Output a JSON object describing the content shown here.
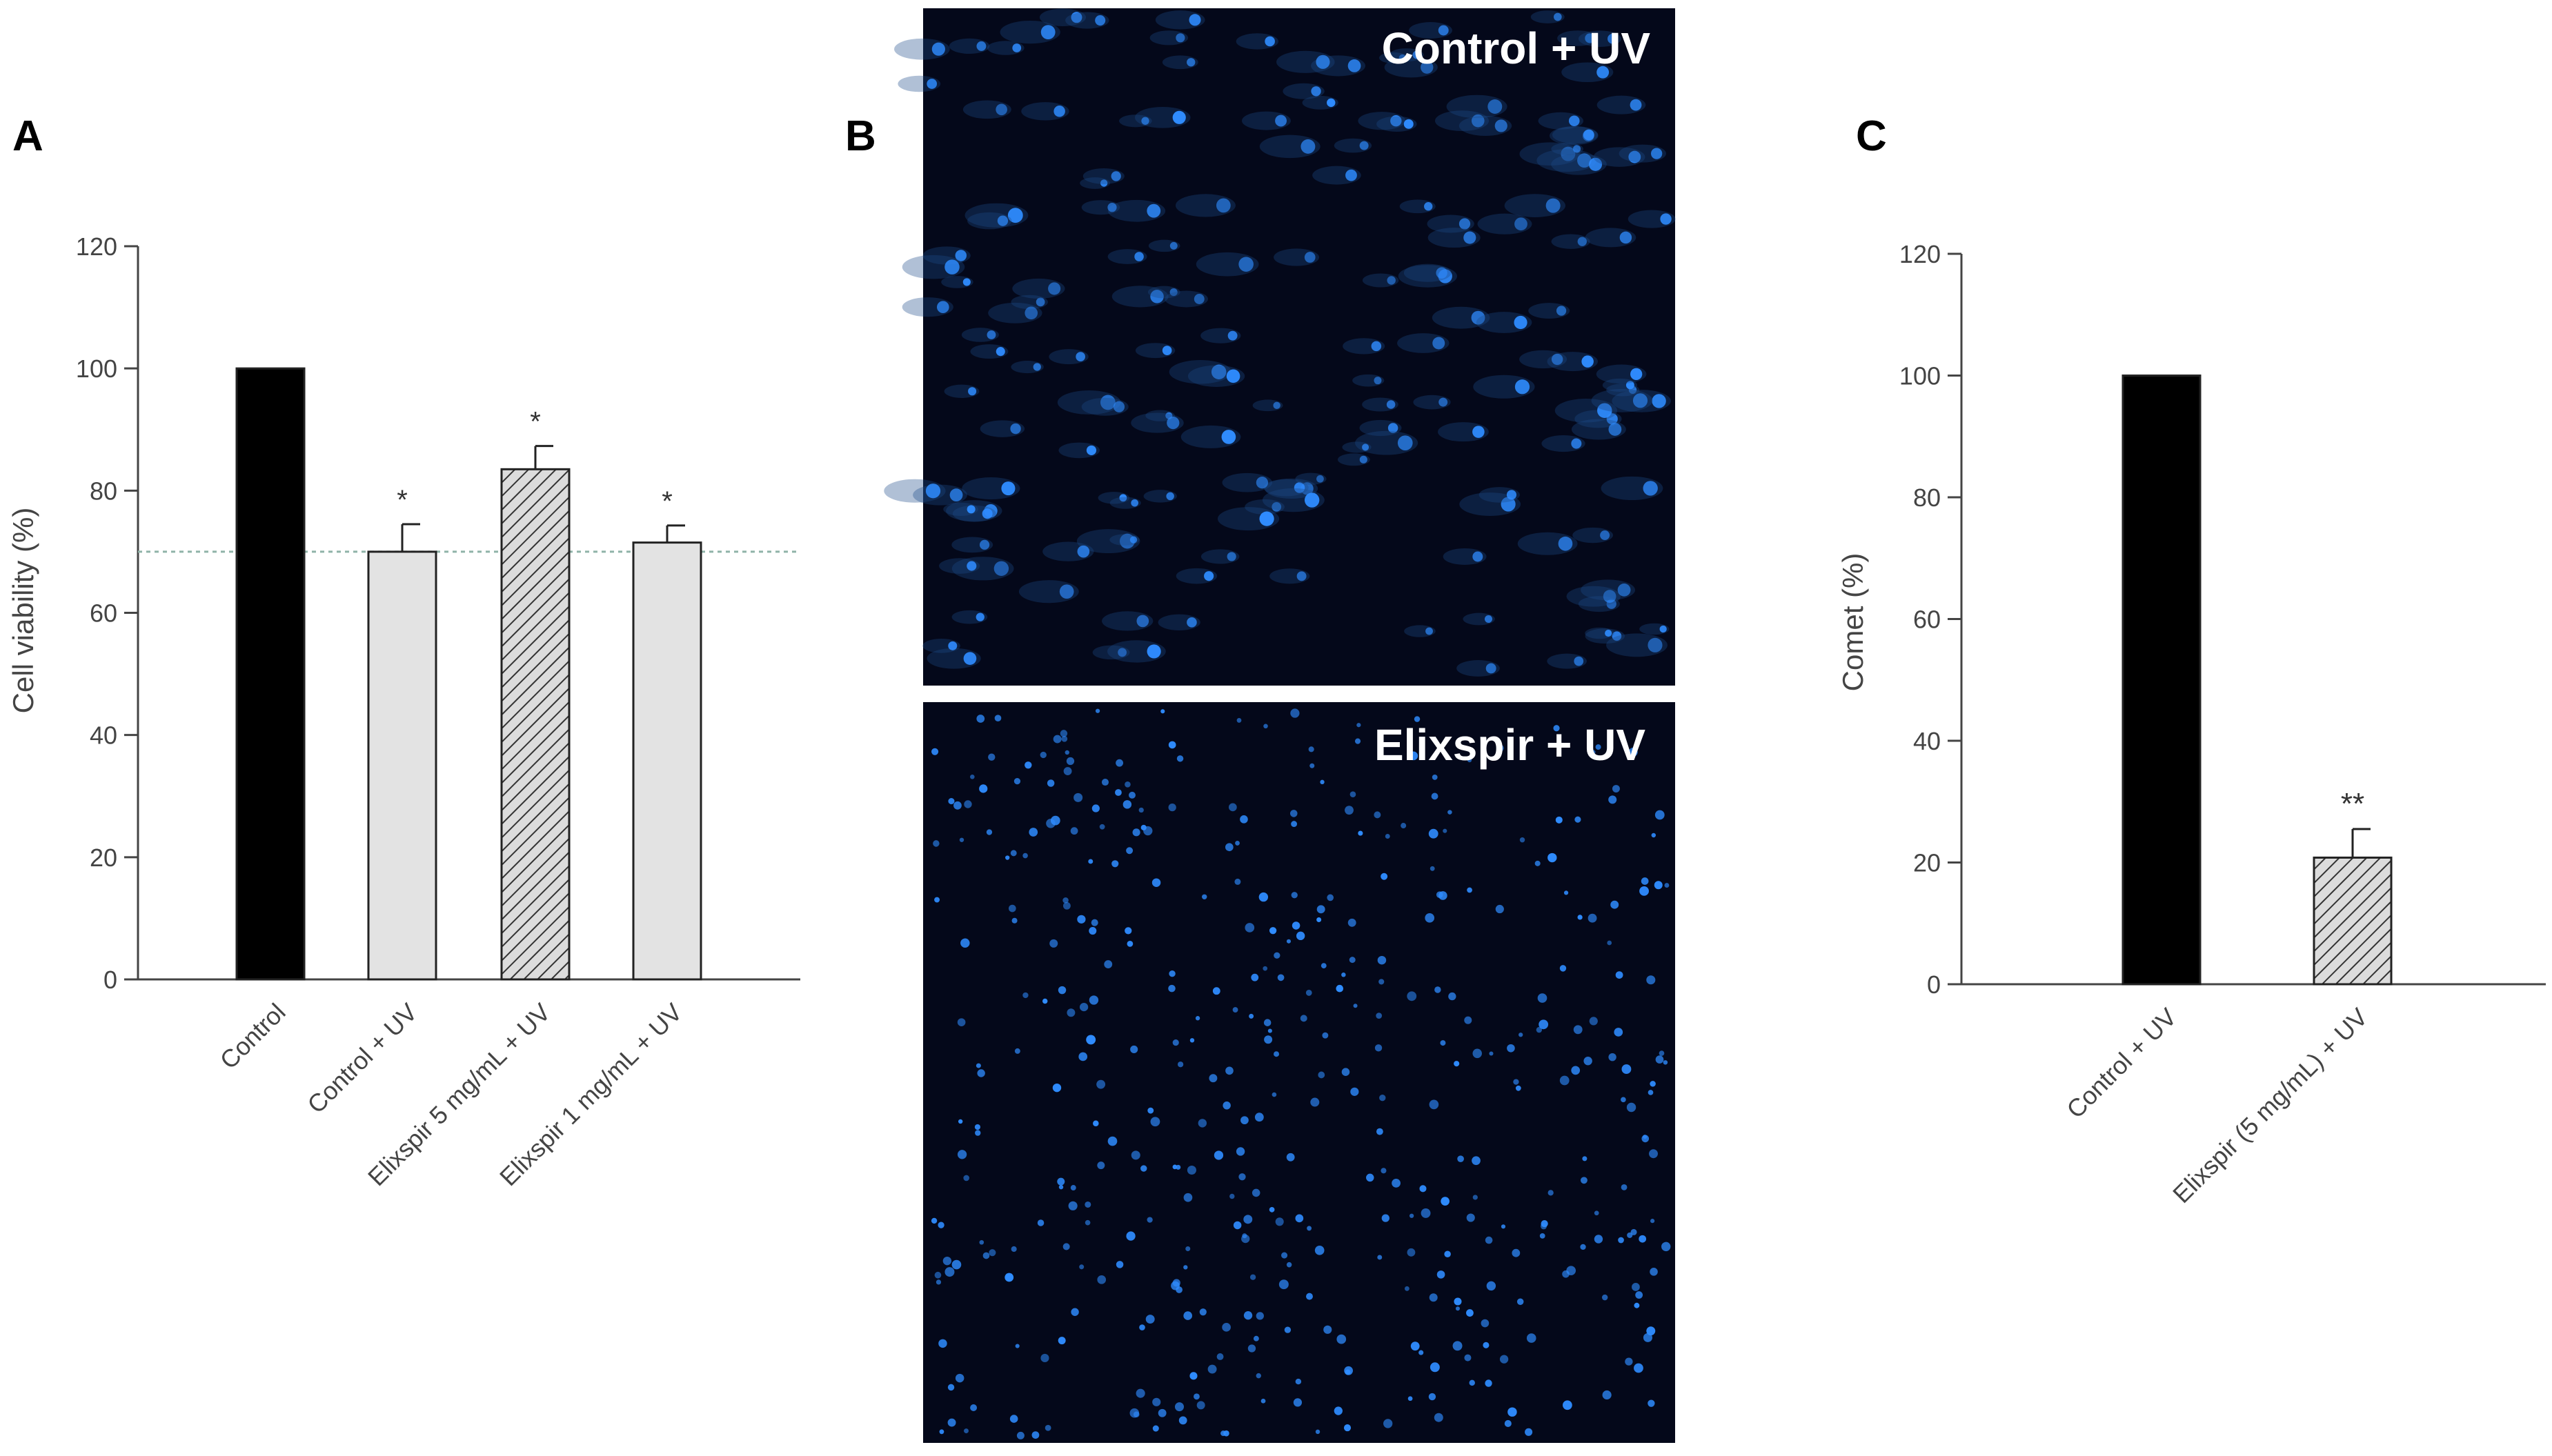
{
  "panels": {
    "a": {
      "letter": "A"
    },
    "b": {
      "letter": "B",
      "top_label": "Control + UV",
      "bottom_label": "Elixspir + UV"
    },
    "c": {
      "letter": "C"
    }
  },
  "colors": {
    "control_bar": "#000000",
    "uv_bar": "#e3e3e3",
    "hatch_bar": "#d9d9d9",
    "reference_line": "#8fb3a8",
    "micrograph_bg": "#04081a",
    "nucleus": "#2f8cff"
  },
  "chart_data": [
    {
      "panel": "A",
      "type": "bar",
      "categories": [
        "Control",
        "Control + UV",
        "Elixspir 5 mg/mL + UV",
        "Elixspir 1 mg/mL + UV"
      ],
      "values": [
        100,
        70,
        83.5,
        71.5
      ],
      "errors": [
        0,
        4.5,
        3.8,
        2.8
      ],
      "annotations": [
        "",
        "*",
        "*",
        "*"
      ],
      "fills": [
        "solid",
        "light",
        "hatched",
        "light"
      ],
      "ylabel": "Cell viability (%)",
      "ylim": [
        0,
        120
      ],
      "yticks": [
        0,
        20,
        40,
        60,
        80,
        100,
        120
      ],
      "reference_line": 70,
      "grid": false
    },
    {
      "panel": "C",
      "type": "bar",
      "categories": [
        "Control + UV",
        "Elixspir (5 mg/mL) + UV"
      ],
      "values": [
        100,
        20.8
      ],
      "errors": [
        0,
        4.7
      ],
      "annotations": [
        "",
        "**"
      ],
      "fills": [
        "solid",
        "hatched"
      ],
      "ylabel": "Comet (%)",
      "ylim": [
        0,
        120
      ],
      "yticks": [
        0,
        20,
        40,
        60,
        80,
        100,
        120
      ],
      "grid": false
    }
  ]
}
